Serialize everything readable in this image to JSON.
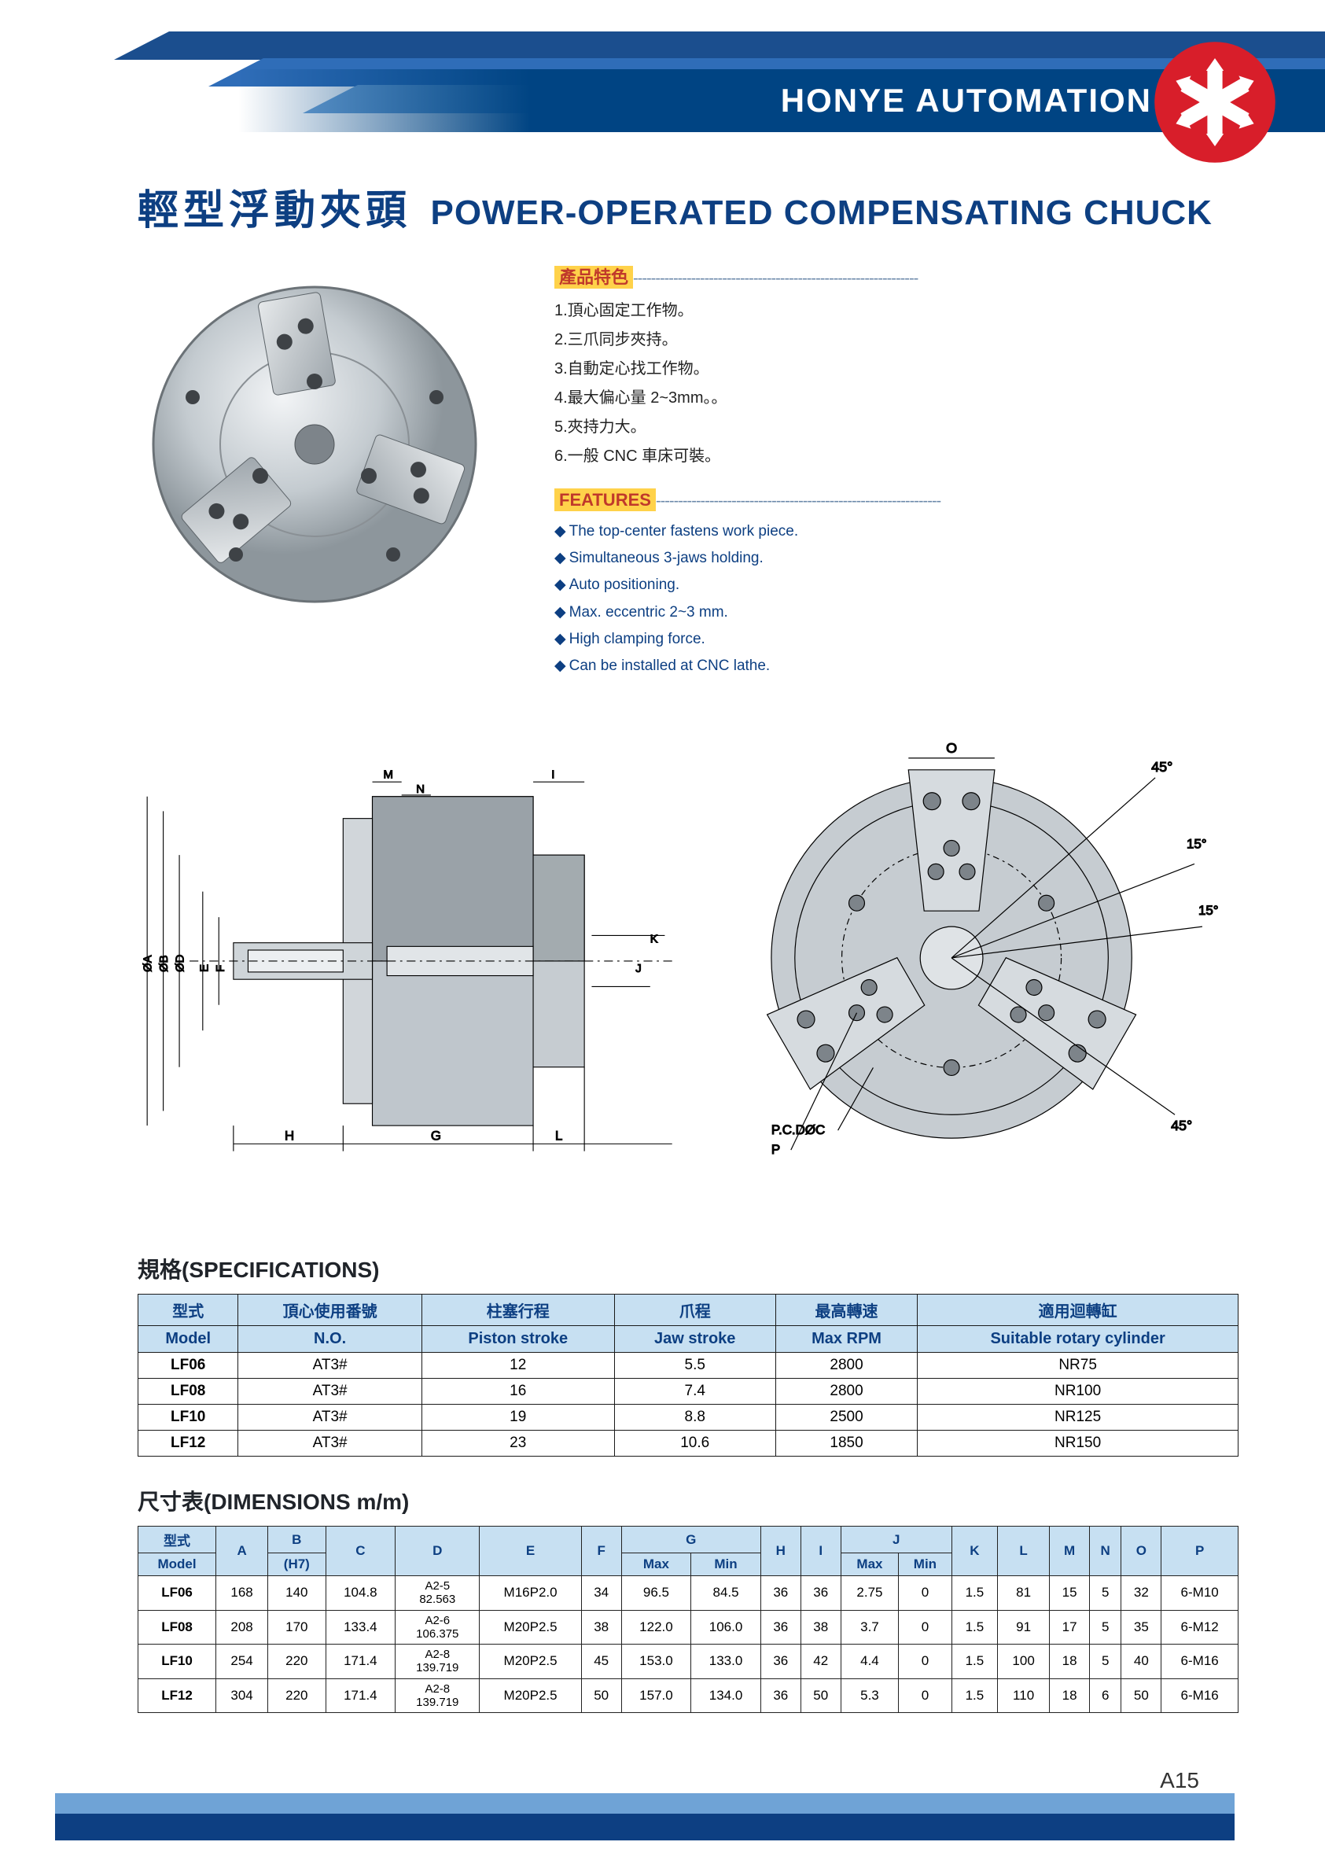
{
  "brand": "HONYE AUTOMATION",
  "logo": {
    "bg": "#d81e2a",
    "fg": "#ffffff"
  },
  "header_stripes": {
    "c1": "#1b4e8e",
    "c2": "#2f6db8",
    "c3": "#84b2de"
  },
  "title": {
    "cn": "輕型浮動夾頭",
    "en": "POWER-OPERATED COMPENSATING CHUCK",
    "color": "#0d3f82",
    "cn_fontsize": 52,
    "en_fontsize": 44
  },
  "features_cn": {
    "header": "產品特色",
    "items": [
      "1.頂心固定工作物。",
      "2.三爪同步夾持。",
      "3.自動定心找工作物。",
      "4.最大偏心量 2~3mm。。",
      "5.夾持力大。",
      "6.一般 CNC 車床可裝。"
    ]
  },
  "features_en": {
    "header": "FEATURES",
    "items": [
      "The top-center fastens work piece.",
      "Simultaneous 3-jaws holding.",
      "Auto positioning.",
      "Max. eccentric 2~3 mm.",
      "High clamping force.",
      "Can be installed at CNC lathe."
    ]
  },
  "highlight": {
    "bg": "#ffd24a",
    "fg": "#c0392b"
  },
  "dashline": "----------------------------------------------------------------",
  "diagram_labels": {
    "left": [
      "ØA",
      "ØB",
      "ØD",
      "E",
      "F",
      "H",
      "G",
      "L",
      "M",
      "N",
      "I",
      "J",
      "K"
    ],
    "right": [
      "O",
      "45°",
      "15°",
      "15°",
      "45°",
      "P.C.DØC",
      "P"
    ]
  },
  "specs": {
    "title": "規格(SPECIFICATIONS)",
    "columns_cn": [
      "型式",
      "頂心使用番號",
      "柱塞行程",
      "爪程",
      "最高轉速",
      "適用迴轉缸"
    ],
    "columns_en": [
      "Model",
      "N.O.",
      "Piston stroke",
      "Jaw stroke",
      "Max RPM",
      "Suitable rotary cylinder"
    ],
    "rows": [
      {
        "model": "LF06",
        "no": "AT3#",
        "piston": "12",
        "jaw": "5.5",
        "rpm": "2800",
        "cyl": "NR75"
      },
      {
        "model": "LF08",
        "no": "AT3#",
        "piston": "16",
        "jaw": "7.4",
        "rpm": "2800",
        "cyl": "NR100"
      },
      {
        "model": "LF10",
        "no": "AT3#",
        "piston": "19",
        "jaw": "8.8",
        "rpm": "2500",
        "cyl": "NR125"
      },
      {
        "model": "LF12",
        "no": "AT3#",
        "piston": "23",
        "jaw": "10.6",
        "rpm": "1850",
        "cyl": "NR150"
      }
    ],
    "header_bg": "#c7e0f2",
    "border": "#1a1a1a"
  },
  "dims": {
    "title": "尺寸表(DIMENSIONS m/m)",
    "header_top": [
      "型式",
      "A",
      "B",
      "C",
      "D",
      "E",
      "F",
      "G",
      "H",
      "I",
      "J",
      "K",
      "L",
      "M",
      "N",
      "O",
      "P"
    ],
    "header_sub_model": "Model",
    "header_sub_b": "(H7)",
    "header_sub_g": [
      "Max",
      "Min"
    ],
    "header_sub_j": [
      "Max",
      "Min"
    ],
    "rows": [
      {
        "model": "LF06",
        "A": "168",
        "B": "140",
        "C": "104.8",
        "D": "A2-5\n82.563",
        "E": "M16P2.0",
        "F": "34",
        "Gmax": "96.5",
        "Gmin": "84.5",
        "H": "36",
        "I": "36",
        "Jmax": "2.75",
        "Jmin": "0",
        "K": "1.5",
        "L": "81",
        "M": "15",
        "N": "5",
        "O": "32",
        "P": "6-M10"
      },
      {
        "model": "LF08",
        "A": "208",
        "B": "170",
        "C": "133.4",
        "D": "A2-6\n106.375",
        "E": "M20P2.5",
        "F": "38",
        "Gmax": "122.0",
        "Gmin": "106.0",
        "H": "36",
        "I": "38",
        "Jmax": "3.7",
        "Jmin": "0",
        "K": "1.5",
        "L": "91",
        "M": "17",
        "N": "5",
        "O": "35",
        "P": "6-M12"
      },
      {
        "model": "LF10",
        "A": "254",
        "B": "220",
        "C": "171.4",
        "D": "A2-8\n139.719",
        "E": "M20P2.5",
        "F": "45",
        "Gmax": "153.0",
        "Gmin": "133.0",
        "H": "36",
        "I": "42",
        "Jmax": "4.4",
        "Jmin": "0",
        "K": "1.5",
        "L": "100",
        "M": "18",
        "N": "5",
        "O": "40",
        "P": "6-M16"
      },
      {
        "model": "LF12",
        "A": "304",
        "B": "220",
        "C": "171.4",
        "D": "A2-8\n139.719",
        "E": "M20P2.5",
        "F": "50",
        "Gmax": "157.0",
        "Gmin": "134.0",
        "H": "36",
        "I": "50",
        "Jmax": "5.3",
        "Jmin": "0",
        "K": "1.5",
        "L": "110",
        "M": "18",
        "N": "6",
        "O": "50",
        "P": "6-M16"
      }
    ]
  },
  "page_number": "A15",
  "footer": {
    "c1": "#84b2de",
    "c2": "#0d3f82"
  }
}
